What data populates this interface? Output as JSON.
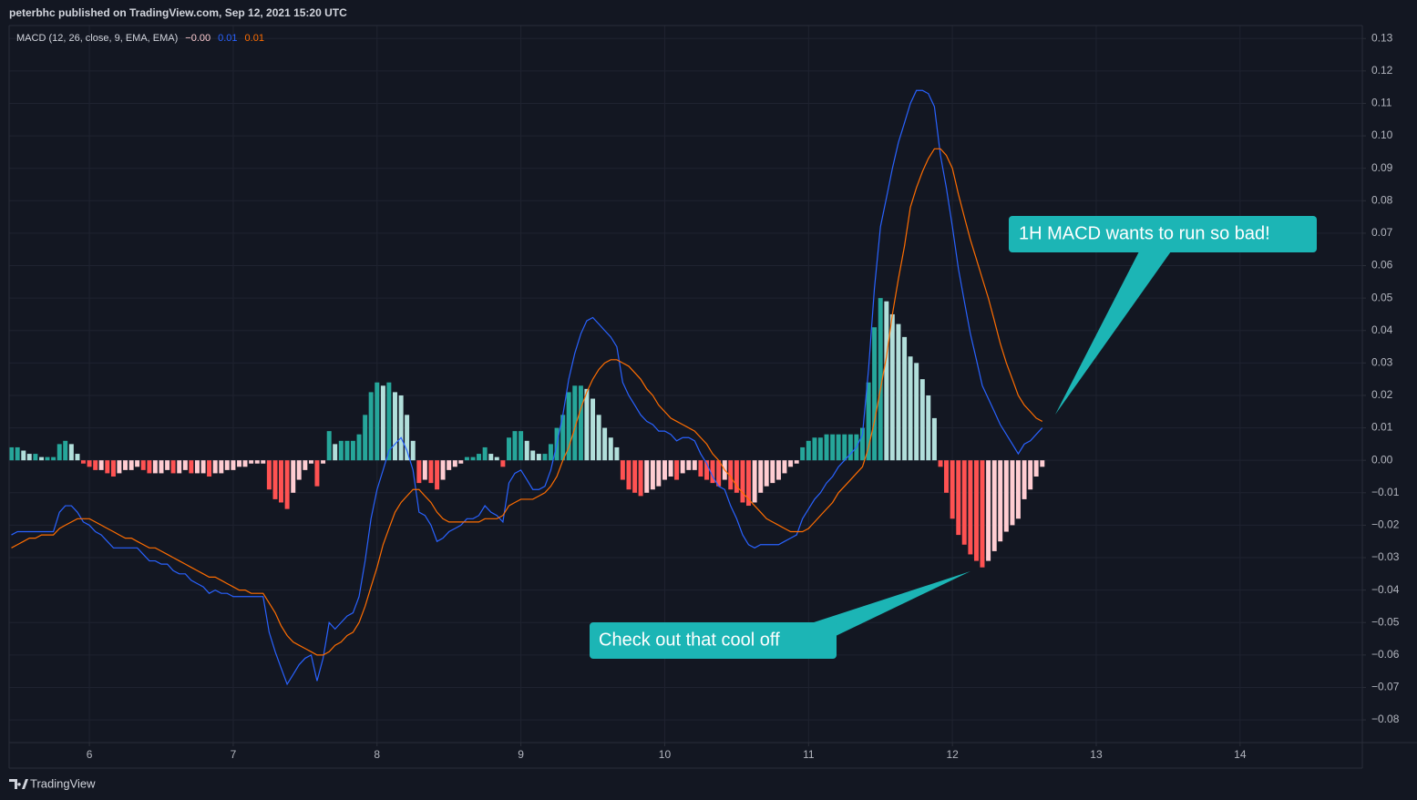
{
  "header": "peterbhc published on TradingView.com, Sep 12, 2021 15:20 UTC",
  "footer": "TradingView",
  "annotations": [
    "1H MACD wants to run so bad!",
    "Check out that cool off"
  ],
  "chart_data": {
    "type": "macd",
    "legend_title": "MACD (12, 26, close, 9, EMA, EMA)",
    "xlim": [
      5.442,
      14.85
    ],
    "ylim": [
      -0.087,
      0.134
    ],
    "xticks": [
      6,
      7,
      8,
      9,
      10,
      11,
      12,
      13,
      14
    ],
    "yticks": [
      0.13,
      0.12,
      0.11,
      {
        "value": 0.1,
        "label": "0.10"
      },
      0.09,
      0.08,
      0.07,
      0.06,
      0.05,
      0.04,
      0.03,
      0.02,
      0.01,
      {
        "value": 0,
        "label": "0.00"
      },
      {
        "value": -0.01,
        "label": "−0.01"
      },
      {
        "value": -0.02,
        "label": "−0.02"
      },
      {
        "value": -0.03,
        "label": "−0.03"
      },
      {
        "value": -0.04,
        "label": "−0.04"
      },
      {
        "value": -0.05,
        "label": "−0.05"
      },
      {
        "value": -0.06,
        "label": "−0.06"
      },
      {
        "value": -0.07,
        "label": "−0.07"
      },
      {
        "value": -0.08,
        "label": "−0.08"
      }
    ],
    "grid": true,
    "x": [
      5.458,
      5.5,
      5.542,
      5.583,
      5.625,
      5.667,
      5.708,
      5.75,
      5.792,
      5.833,
      5.875,
      5.917,
      5.958,
      6,
      6.042,
      6.083,
      6.125,
      6.167,
      6.208,
      6.25,
      6.292,
      6.333,
      6.375,
      6.417,
      6.458,
      6.5,
      6.542,
      6.583,
      6.625,
      6.667,
      6.708,
      6.75,
      6.792,
      6.833,
      6.875,
      6.917,
      6.958,
      7,
      7.042,
      7.083,
      7.125,
      7.167,
      7.208,
      7.25,
      7.292,
      7.333,
      7.375,
      7.417,
      7.458,
      7.5,
      7.542,
      7.583,
      7.625,
      7.667,
      7.708,
      7.75,
      7.792,
      7.833,
      7.875,
      7.917,
      7.958,
      8,
      8.042,
      8.083,
      8.125,
      8.167,
      8.208,
      8.25,
      8.292,
      8.333,
      8.375,
      8.417,
      8.458,
      8.5,
      8.542,
      8.583,
      8.625,
      8.667,
      8.708,
      8.75,
      8.792,
      8.833,
      8.875,
      8.917,
      8.958,
      9,
      9.042,
      9.083,
      9.125,
      9.167,
      9.208,
      9.25,
      9.292,
      9.333,
      9.375,
      9.417,
      9.458,
      9.5,
      9.542,
      9.583,
      9.625,
      9.667,
      9.708,
      9.75,
      9.792,
      9.833,
      9.875,
      9.917,
      9.958,
      10,
      10.042,
      10.083,
      10.125,
      10.167,
      10.208,
      10.25,
      10.292,
      10.333,
      10.375,
      10.417,
      10.458,
      10.5,
      10.542,
      10.583,
      10.625,
      10.667,
      10.708,
      10.75,
      10.792,
      10.833,
      10.875,
      10.917,
      10.958,
      11,
      11.042,
      11.083,
      11.125,
      11.167,
      11.208,
      11.25,
      11.292,
      11.333,
      11.375,
      11.417,
      11.458,
      11.5,
      11.542,
      11.583,
      11.625,
      11.667,
      11.708,
      11.75,
      11.792,
      11.833,
      11.875,
      11.917,
      11.958,
      12,
      12.042,
      12.083,
      12.125,
      12.167,
      12.208,
      12.25,
      12.292,
      12.333,
      12.375,
      12.417,
      12.458,
      12.5,
      12.542,
      12.583,
      12.625
    ],
    "series": [
      {
        "type": "histogram",
        "colors": {
          "above_rising": "#26a69a",
          "above_falling": "#b2dfdb",
          "below_falling": "#ff5252",
          "below_rising": "#ffcdd2"
        },
        "last_label": "−0.00",
        "values": [
          0.004,
          0.004,
          0.003,
          0.002,
          0.002,
          0.001,
          0.001,
          0.001,
          0.005,
          0.006,
          0.005,
          0.002,
          -0.001,
          -0.002,
          -0.003,
          -0.003,
          -0.004,
          -0.005,
          -0.004,
          -0.003,
          -0.003,
          -0.002,
          -0.003,
          -0.004,
          -0.004,
          -0.004,
          -0.003,
          -0.004,
          -0.004,
          -0.003,
          -0.004,
          -0.004,
          -0.004,
          -0.005,
          -0.004,
          -0.004,
          -0.003,
          -0.003,
          -0.002,
          -0.002,
          -0.001,
          -0.001,
          -0.001,
          -0.009,
          -0.012,
          -0.013,
          -0.015,
          -0.01,
          -0.006,
          -0.003,
          -0.001,
          -0.008,
          -0.001,
          0.009,
          0.005,
          0.006,
          0.006,
          0.006,
          0.008,
          0.014,
          0.021,
          0.024,
          0.023,
          0.024,
          0.021,
          0.02,
          0.014,
          0.006,
          -0.007,
          -0.006,
          -0.007,
          -0.009,
          -0.006,
          -0.003,
          -0.002,
          -0.001,
          0.001,
          0.001,
          0.002,
          0.004,
          0.002,
          0.001,
          -0.002,
          0.007,
          0.009,
          0.009,
          0.006,
          0.003,
          0.002,
          0.002,
          0.005,
          0.01,
          0.014,
          0.021,
          0.023,
          0.023,
          0.022,
          0.019,
          0.014,
          0.01,
          0.007,
          0.004,
          -0.006,
          -0.009,
          -0.01,
          -0.011,
          -0.01,
          -0.009,
          -0.008,
          -0.006,
          -0.005,
          -0.006,
          -0.004,
          -0.003,
          -0.003,
          -0.005,
          -0.006,
          -0.007,
          -0.008,
          -0.006,
          -0.009,
          -0.01,
          -0.013,
          -0.014,
          -0.013,
          -0.01,
          -0.008,
          -0.007,
          -0.006,
          -0.004,
          -0.002,
          -0.001,
          0.004,
          0.006,
          0.007,
          0.007,
          0.008,
          0.008,
          0.008,
          0.008,
          0.008,
          0.008,
          0.01,
          0.024,
          0.041,
          0.05,
          0.049,
          0.045,
          0.042,
          0.038,
          0.032,
          0.03,
          0.025,
          0.02,
          0.013,
          -0.002,
          -0.01,
          -0.018,
          -0.023,
          -0.026,
          -0.029,
          -0.031,
          -0.033,
          -0.031,
          -0.028,
          -0.025,
          -0.022,
          -0.02,
          -0.018,
          -0.012,
          -0.009,
          -0.005,
          -0.002
        ]
      },
      {
        "type": "line",
        "color": "#2962ff",
        "last_label": "0.01",
        "values": [
          -0.023,
          -0.022,
          -0.022,
          -0.022,
          -0.022,
          -0.022,
          -0.022,
          -0.022,
          -0.016,
          -0.014,
          -0.014,
          -0.016,
          -0.019,
          -0.02,
          -0.022,
          -0.023,
          -0.025,
          -0.027,
          -0.027,
          -0.027,
          -0.027,
          -0.027,
          -0.029,
          -0.031,
          -0.031,
          -0.032,
          -0.032,
          -0.034,
          -0.035,
          -0.035,
          -0.037,
          -0.038,
          -0.039,
          -0.041,
          -0.04,
          -0.041,
          -0.041,
          -0.042,
          -0.042,
          -0.042,
          -0.042,
          -0.042,
          -0.042,
          -0.053,
          -0.059,
          -0.064,
          -0.069,
          -0.066,
          -0.063,
          -0.061,
          -0.06,
          -0.068,
          -0.061,
          -0.05,
          -0.052,
          -0.05,
          -0.048,
          -0.047,
          -0.042,
          -0.031,
          -0.018,
          -0.009,
          -0.003,
          0.003,
          0.005,
          0.007,
          0.003,
          -0.003,
          -0.016,
          -0.017,
          -0.02,
          -0.025,
          -0.024,
          -0.022,
          -0.021,
          -0.02,
          -0.018,
          -0.018,
          -0.017,
          -0.014,
          -0.016,
          -0.017,
          -0.019,
          -0.007,
          -0.004,
          -0.003,
          -0.006,
          -0.009,
          -0.009,
          -0.008,
          -0.003,
          0.005,
          0.014,
          0.025,
          0.033,
          0.039,
          0.043,
          0.044,
          0.042,
          0.04,
          0.038,
          0.035,
          0.024,
          0.02,
          0.017,
          0.014,
          0.012,
          0.011,
          0.009,
          0.009,
          0.008,
          0.006,
          0.007,
          0.007,
          0.006,
          0.002,
          -0.001,
          -0.005,
          -0.008,
          -0.009,
          -0.014,
          -0.018,
          -0.023,
          -0.026,
          -0.027,
          -0.026,
          -0.026,
          -0.026,
          -0.026,
          -0.025,
          -0.024,
          -0.023,
          -0.018,
          -0.015,
          -0.012,
          -0.01,
          -0.007,
          -0.005,
          -0.002,
          0,
          0.002,
          0.004,
          0.008,
          0.028,
          0.053,
          0.072,
          0.081,
          0.09,
          0.098,
          0.104,
          0.11,
          0.114,
          0.114,
          0.113,
          0.109,
          0.094,
          0.084,
          0.072,
          0.059,
          0.049,
          0.039,
          0.031,
          0.023,
          0.019,
          0.015,
          0.011,
          0.008,
          0.005,
          0.002,
          0.005,
          0.006,
          0.008,
          0.01
        ]
      },
      {
        "type": "line",
        "color": "#ff6d00",
        "last_label": "0.01",
        "values": [
          -0.027,
          -0.026,
          -0.025,
          -0.024,
          -0.024,
          -0.023,
          -0.023,
          -0.023,
          -0.021,
          -0.02,
          -0.019,
          -0.018,
          -0.018,
          -0.018,
          -0.019,
          -0.02,
          -0.021,
          -0.022,
          -0.023,
          -0.024,
          -0.024,
          -0.025,
          -0.026,
          -0.027,
          -0.027,
          -0.028,
          -0.029,
          -0.03,
          -0.031,
          -0.032,
          -0.033,
          -0.034,
          -0.035,
          -0.036,
          -0.036,
          -0.037,
          -0.038,
          -0.039,
          -0.04,
          -0.04,
          -0.041,
          -0.041,
          -0.041,
          -0.044,
          -0.047,
          -0.051,
          -0.054,
          -0.056,
          -0.057,
          -0.058,
          -0.059,
          -0.06,
          -0.06,
          -0.059,
          -0.057,
          -0.056,
          -0.054,
          -0.053,
          -0.05,
          -0.045,
          -0.039,
          -0.033,
          -0.026,
          -0.021,
          -0.016,
          -0.013,
          -0.011,
          -0.009,
          -0.009,
          -0.011,
          -0.013,
          -0.016,
          -0.018,
          -0.019,
          -0.019,
          -0.019,
          -0.019,
          -0.019,
          -0.019,
          -0.018,
          -0.018,
          -0.018,
          -0.017,
          -0.014,
          -0.013,
          -0.012,
          -0.012,
          -0.012,
          -0.011,
          -0.01,
          -0.008,
          -0.005,
          0,
          0.004,
          0.01,
          0.016,
          0.021,
          0.025,
          0.028,
          0.03,
          0.031,
          0.031,
          0.03,
          0.029,
          0.027,
          0.025,
          0.022,
          0.02,
          0.017,
          0.015,
          0.013,
          0.012,
          0.011,
          0.01,
          0.009,
          0.007,
          0.005,
          0.002,
          0,
          -0.003,
          -0.005,
          -0.008,
          -0.01,
          -0.012,
          -0.014,
          -0.016,
          -0.018,
          -0.019,
          -0.02,
          -0.021,
          -0.022,
          -0.022,
          -0.022,
          -0.021,
          -0.019,
          -0.017,
          -0.015,
          -0.013,
          -0.01,
          -0.008,
          -0.006,
          -0.004,
          -0.002,
          0.004,
          0.012,
          0.022,
          0.032,
          0.045,
          0.056,
          0.066,
          0.078,
          0.084,
          0.089,
          0.093,
          0.096,
          0.096,
          0.094,
          0.09,
          0.082,
          0.075,
          0.068,
          0.062,
          0.056,
          0.05,
          0.043,
          0.036,
          0.03,
          0.025,
          0.02,
          0.017,
          0.015,
          0.013,
          0.012
        ]
      }
    ]
  }
}
